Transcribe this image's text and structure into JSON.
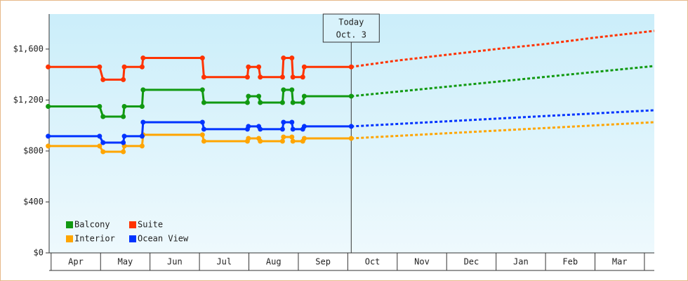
{
  "chart_data": {
    "type": "line",
    "xlim": [
      -0.04,
      12.2
    ],
    "ylim": [
      0,
      1875
    ],
    "xticks": [
      {
        "value": 0.5,
        "label": "Apr"
      },
      {
        "value": 1.5,
        "label": "May"
      },
      {
        "value": 2.5,
        "label": "Jun"
      },
      {
        "value": 3.5,
        "label": "Jul"
      },
      {
        "value": 4.5,
        "label": "Aug"
      },
      {
        "value": 5.5,
        "label": "Sep"
      },
      {
        "value": 6.5,
        "label": "Oct"
      },
      {
        "value": 7.5,
        "label": "Nov"
      },
      {
        "value": 8.5,
        "label": "Dec"
      },
      {
        "value": 9.5,
        "label": "Jan"
      },
      {
        "value": 10.5,
        "label": "Feb"
      },
      {
        "value": 11.5,
        "label": "Mar"
      }
    ],
    "yticks": [
      {
        "value": 0,
        "label": "$0"
      },
      {
        "value": 400,
        "label": "$400"
      },
      {
        "value": 800,
        "label": "$800"
      },
      {
        "value": 1200,
        "label": "$1,200"
      },
      {
        "value": 1600,
        "label": "$1,600"
      }
    ],
    "legend": "bottom-left",
    "today": {
      "x": 6.07,
      "label": [
        "Today",
        "Oct. 3"
      ]
    },
    "series": [
      {
        "name": "Balcony",
        "color": "#119911",
        "x": [
          -0.06,
          0.98,
          1.05,
          1.46,
          1.48,
          1.84,
          1.86,
          3.06,
          3.09,
          3.97,
          3.99,
          4.2,
          4.23,
          4.68,
          4.7,
          4.87,
          4.89,
          5.09,
          5.12,
          6.07
        ],
        "values": [
          1150,
          1150,
          1070,
          1070,
          1150,
          1150,
          1280,
          1280,
          1180,
          1180,
          1230,
          1230,
          1180,
          1180,
          1280,
          1280,
          1180,
          1180,
          1230,
          1230
        ],
        "forecast": {
          "x": [
            6.07,
            12.2
          ],
          "values": [
            1230,
            1467
          ]
        }
      },
      {
        "name": "Suite",
        "color": "#ff3300",
        "x": [
          -0.06,
          0.98,
          1.05,
          1.46,
          1.48,
          1.84,
          1.86,
          3.06,
          3.09,
          3.97,
          3.99,
          4.2,
          4.23,
          4.68,
          4.7,
          4.87,
          4.89,
          5.09,
          5.12,
          6.07
        ],
        "values": [
          1460,
          1460,
          1360,
          1360,
          1460,
          1460,
          1530,
          1530,
          1380,
          1380,
          1460,
          1460,
          1380,
          1380,
          1530,
          1530,
          1380,
          1380,
          1460,
          1460
        ],
        "forecast": {
          "x": [
            6.07,
            7,
            8,
            9,
            10,
            11,
            12.2
          ],
          "values": [
            1460,
            1510,
            1555,
            1600,
            1640,
            1690,
            1743
          ]
        }
      },
      {
        "name": "Interior",
        "color": "#ffa500",
        "x": [
          -0.06,
          0.98,
          1.05,
          1.46,
          1.48,
          1.84,
          1.86,
          3.06,
          3.09,
          3.97,
          3.99,
          4.2,
          4.23,
          4.68,
          4.7,
          4.87,
          4.89,
          5.09,
          5.12,
          6.07
        ],
        "values": [
          839,
          839,
          794,
          794,
          839,
          839,
          927,
          927,
          877,
          877,
          899,
          899,
          877,
          877,
          910,
          910,
          877,
          877,
          899,
          899
        ],
        "forecast": {
          "x": [
            6.07,
            12.2
          ],
          "values": [
            899,
            1026
          ]
        }
      },
      {
        "name": "Ocean View",
        "color": "#0033ff",
        "x": [
          -0.06,
          0.98,
          1.05,
          1.46,
          1.48,
          1.84,
          1.86,
          3.06,
          3.09,
          3.97,
          3.99,
          4.2,
          4.23,
          4.68,
          4.7,
          4.87,
          4.89,
          5.09,
          5.12,
          6.07
        ],
        "values": [
          916,
          916,
          866,
          866,
          916,
          916,
          1026,
          1026,
          971,
          971,
          993,
          993,
          971,
          971,
          1026,
          1026,
          971,
          971,
          993,
          993
        ],
        "forecast": {
          "x": [
            6.07,
            12.2
          ],
          "values": [
            993,
            1120
          ]
        }
      }
    ]
  }
}
